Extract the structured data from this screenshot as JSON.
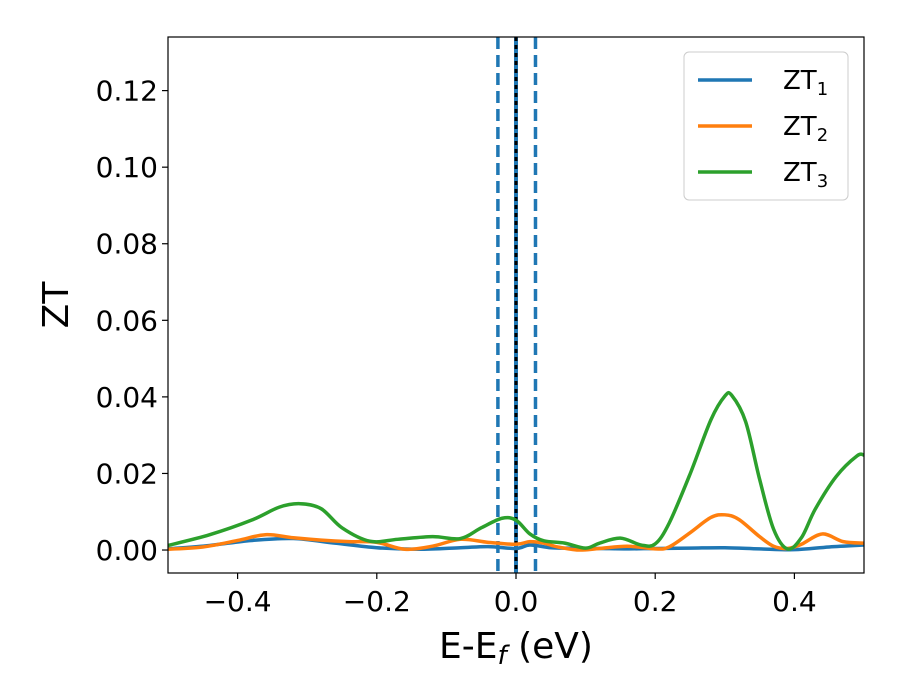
{
  "chart_data": {
    "type": "line",
    "xlabel": "E-E",
    "xlabel_sub": "f",
    "xlabel_unit": " (eV)",
    "ylabel": "ZT",
    "xlim": [
      -0.5,
      0.5
    ],
    "ylim": [
      -0.006,
      0.134
    ],
    "xticks": [
      -0.4,
      -0.2,
      0.0,
      0.2,
      0.4
    ],
    "xtick_labels": [
      "−0.4",
      "−0.2",
      "0.0",
      "0.2",
      "0.4"
    ],
    "yticks": [
      0.0,
      0.02,
      0.04,
      0.06,
      0.08,
      0.1,
      0.12
    ],
    "ytick_labels": [
      "0.00",
      "0.02",
      "0.04",
      "0.06",
      "0.08",
      "0.10",
      "0.12"
    ],
    "grid": false,
    "legend_position": "top-right",
    "vlines": [
      {
        "x": -0.026,
        "style": "dashed",
        "color": "#1f77b4"
      },
      {
        "x": 0.0,
        "style": "solid",
        "color": "#1f77b4"
      },
      {
        "x": 0.0,
        "style": "dashed",
        "color": "#000000"
      },
      {
        "x": 0.028,
        "style": "dashed",
        "color": "#1f77b4"
      }
    ],
    "series": [
      {
        "name": "ZT",
        "name_sub": "1",
        "color": "#1f77b4",
        "x": [
          -0.5,
          -0.44,
          -0.38,
          -0.32,
          -0.26,
          -0.2,
          -0.14,
          -0.08,
          -0.04,
          0.0,
          0.02,
          0.05,
          0.08,
          0.12,
          0.16,
          0.2,
          0.25,
          0.3,
          0.35,
          0.4,
          0.45,
          0.5
        ],
        "y": [
          0.0003,
          0.0012,
          0.0025,
          0.003,
          0.0018,
          0.0006,
          0.0002,
          0.0006,
          0.0009,
          0.0004,
          0.0013,
          0.0006,
          0.0005,
          0.0004,
          0.0003,
          0.0004,
          0.0005,
          0.0006,
          0.0003,
          0.0001,
          0.0008,
          0.0013
        ]
      },
      {
        "name": "ZT",
        "name_sub": "2",
        "color": "#ff7f0e",
        "x": [
          -0.5,
          -0.45,
          -0.4,
          -0.36,
          -0.32,
          -0.28,
          -0.24,
          -0.2,
          -0.16,
          -0.12,
          -0.08,
          -0.04,
          0.0,
          0.02,
          0.04,
          0.06,
          0.09,
          0.12,
          0.16,
          0.2,
          0.22,
          0.25,
          0.28,
          0.3,
          0.32,
          0.35,
          0.37,
          0.39,
          0.41,
          0.44,
          0.47,
          0.5
        ],
        "y": [
          0.0002,
          0.0008,
          0.0025,
          0.004,
          0.0032,
          0.0026,
          0.0022,
          0.002,
          0.0002,
          0.001,
          0.0028,
          0.002,
          0.0015,
          0.0022,
          0.0018,
          0.0008,
          0.0,
          0.0004,
          0.001,
          0.0003,
          0.0008,
          0.0045,
          0.0085,
          0.0092,
          0.008,
          0.0035,
          0.001,
          0.0004,
          0.0015,
          0.0042,
          0.0022,
          0.0018
        ]
      },
      {
        "name": "ZT",
        "name_sub": "3",
        "color": "#2ca02c",
        "x": [
          -0.5,
          -0.44,
          -0.38,
          -0.34,
          -0.31,
          -0.28,
          -0.25,
          -0.21,
          -0.17,
          -0.12,
          -0.08,
          -0.05,
          -0.02,
          0.0,
          0.02,
          0.04,
          0.07,
          0.1,
          0.12,
          0.15,
          0.18,
          0.2,
          0.22,
          0.25,
          0.28,
          0.3,
          0.31,
          0.33,
          0.35,
          0.37,
          0.39,
          0.41,
          0.43,
          0.46,
          0.49,
          0.5
        ],
        "y": [
          0.0012,
          0.004,
          0.0078,
          0.0112,
          0.0121,
          0.0108,
          0.0058,
          0.0023,
          0.0028,
          0.0035,
          0.003,
          0.0058,
          0.0083,
          0.0078,
          0.0042,
          0.0024,
          0.0018,
          0.0005,
          0.0018,
          0.0031,
          0.0013,
          0.0016,
          0.007,
          0.0198,
          0.034,
          0.0402,
          0.0404,
          0.0335,
          0.0185,
          0.0055,
          0.0003,
          0.0032,
          0.0107,
          0.0192,
          0.0246,
          0.0248
        ]
      }
    ]
  }
}
